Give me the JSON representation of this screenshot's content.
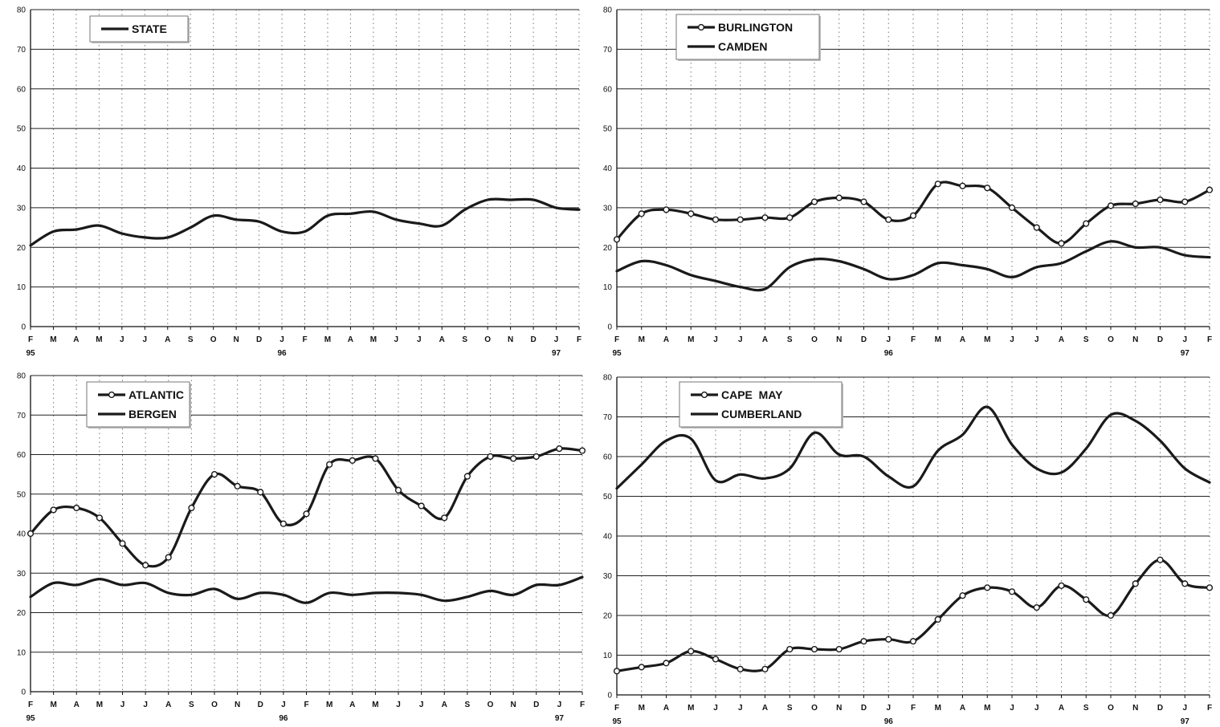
{
  "chart_data": [
    {
      "type": "line",
      "title": "",
      "xlabel": "",
      "ylabel": "",
      "ylim": [
        0,
        80
      ],
      "yticks": [
        0,
        10,
        20,
        30,
        40,
        50,
        60,
        70,
        80
      ],
      "months": [
        "F",
        "M",
        "A",
        "M",
        "J",
        "J",
        "A",
        "S",
        "O",
        "N",
        "D",
        "J",
        "F",
        "M",
        "A",
        "M",
        "J",
        "J",
        "A",
        "S",
        "O",
        "N",
        "D",
        "J",
        "F"
      ],
      "year_labels": [
        {
          "index": 0,
          "label": "95"
        },
        {
          "index": 11,
          "label": "96"
        },
        {
          "index": 23,
          "label": "97"
        }
      ],
      "grid": true,
      "legend_position": "top-left",
      "series": [
        {
          "name": "STATE",
          "marker": "none",
          "values": [
            20.5,
            24,
            24.5,
            25.5,
            23.5,
            22.5,
            22.5,
            25,
            28,
            27,
            26.5,
            24,
            24,
            28,
            28.5,
            29,
            27,
            26,
            25.5,
            29.5,
            32,
            32,
            32,
            30,
            29.5
          ]
        }
      ]
    },
    {
      "type": "line",
      "title": "",
      "xlabel": "",
      "ylabel": "",
      "ylim": [
        0,
        80
      ],
      "yticks": [
        0,
        10,
        20,
        30,
        40,
        50,
        60,
        70,
        80
      ],
      "months": [
        "F",
        "M",
        "A",
        "M",
        "J",
        "J",
        "A",
        "S",
        "O",
        "N",
        "D",
        "J",
        "F",
        "M",
        "A",
        "M",
        "J",
        "J",
        "A",
        "S",
        "O",
        "N",
        "D",
        "J",
        "F"
      ],
      "year_labels": [
        {
          "index": 0,
          "label": "95"
        },
        {
          "index": 11,
          "label": "96"
        },
        {
          "index": 23,
          "label": "97"
        }
      ],
      "grid": true,
      "legend_position": "top-center",
      "series": [
        {
          "name": "BURLINGTON",
          "marker": "circle",
          "values": [
            22,
            28.5,
            29.5,
            28.5,
            27,
            27,
            27.5,
            27.5,
            31.5,
            32.5,
            31.5,
            27,
            28,
            36,
            35.5,
            35,
            30,
            25,
            21,
            26,
            30.5,
            31,
            32,
            31.5,
            34.5
          ]
        },
        {
          "name": "CAMDEN",
          "marker": "none",
          "values": [
            14,
            16.5,
            15.5,
            13,
            11.5,
            10,
            9.5,
            15,
            17,
            16.5,
            14.5,
            12,
            13,
            16,
            15.5,
            14.5,
            12.5,
            15,
            16,
            19,
            21.5,
            20,
            20,
            18,
            17.5
          ]
        }
      ]
    },
    {
      "type": "line",
      "title": "",
      "xlabel": "",
      "ylabel": "",
      "ylim": [
        0,
        80
      ],
      "yticks": [
        0,
        10,
        20,
        30,
        40,
        50,
        60,
        70,
        80
      ],
      "months": [
        "F",
        "M",
        "A",
        "M",
        "J",
        "J",
        "A",
        "S",
        "O",
        "N",
        "D",
        "J",
        "F",
        "M",
        "A",
        "M",
        "J",
        "J",
        "A",
        "S",
        "O",
        "N",
        "D",
        "J",
        "F"
      ],
      "year_labels": [
        {
          "index": 0,
          "label": "95"
        },
        {
          "index": 11,
          "label": "96"
        },
        {
          "index": 23,
          "label": "97"
        }
      ],
      "grid": true,
      "legend_position": "top-left",
      "series": [
        {
          "name": "ATLANTIC",
          "marker": "circle",
          "values": [
            40,
            46,
            46.5,
            44,
            37.5,
            32,
            34,
            46.5,
            55,
            52,
            50.5,
            42.5,
            45,
            57.5,
            58.5,
            59,
            51,
            47,
            44,
            54.5,
            59.5,
            59,
            59.5,
            61.5,
            61
          ]
        },
        {
          "name": "BERGEN",
          "marker": "none",
          "values": [
            24,
            27.5,
            27,
            28.5,
            27,
            27.5,
            25,
            24.5,
            26,
            23.5,
            25,
            24.5,
            22.5,
            25,
            24.5,
            25,
            25,
            24.5,
            23,
            24,
            25.5,
            24.5,
            27,
            27,
            29
          ]
        }
      ]
    },
    {
      "type": "line",
      "title": "",
      "xlabel": "",
      "ylabel": "",
      "ylim": [
        0,
        80
      ],
      "yticks": [
        0,
        10,
        20,
        30,
        40,
        50,
        60,
        70,
        80
      ],
      "months": [
        "F",
        "M",
        "A",
        "M",
        "J",
        "J",
        "A",
        "S",
        "O",
        "N",
        "D",
        "J",
        "F",
        "M",
        "A",
        "M",
        "J",
        "J",
        "A",
        "S",
        "O",
        "N",
        "D",
        "J",
        "F"
      ],
      "year_labels": [
        {
          "index": 0,
          "label": "95"
        },
        {
          "index": 11,
          "label": "96"
        },
        {
          "index": 23,
          "label": "97"
        }
      ],
      "grid": true,
      "legend_position": "top-left",
      "series": [
        {
          "name": "CAPE  MAY",
          "marker": "circle",
          "values": [
            6,
            7,
            8,
            11,
            9,
            6.5,
            6.5,
            11.5,
            11.5,
            11.5,
            13.5,
            14,
            13.5,
            19,
            25,
            27,
            26,
            22,
            27.5,
            24,
            20,
            28,
            34,
            28,
            27
          ]
        },
        {
          "name": "CUMBERLAND",
          "marker": "none",
          "values": [
            52,
            58,
            64,
            64.5,
            54,
            55.5,
            54.5,
            57,
            66,
            60.5,
            60,
            55,
            52.5,
            61.5,
            65.5,
            72.5,
            63,
            57,
            56,
            62,
            70.5,
            69,
            64,
            57,
            53.5
          ]
        }
      ]
    }
  ]
}
